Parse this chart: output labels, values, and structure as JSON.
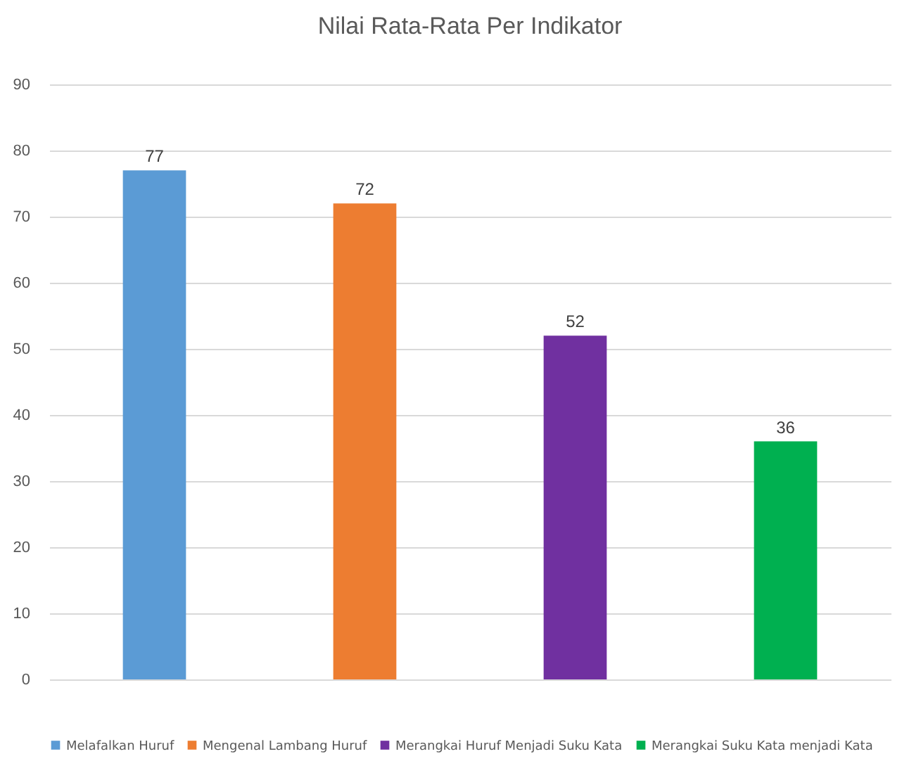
{
  "chart_data": {
    "type": "bar",
    "title": "Nilai Rata-Rata Per Indikator",
    "categories": [
      null,
      null,
      null,
      null
    ],
    "series": [
      {
        "name": "Melafalkan Huruf",
        "color": "#5b9bd5",
        "values": [
          77,
          null,
          null,
          null
        ]
      },
      {
        "name": "Mengenal Lambang Huruf",
        "color": "#ed7d31",
        "values": [
          null,
          72,
          null,
          null
        ]
      },
      {
        "name": "Merangkai Huruf Menjadi Suku Kata",
        "color": "#7030a0",
        "values": [
          null,
          null,
          52,
          null
        ]
      },
      {
        "name": "Merangkai Suku Kata menjadi Kata",
        "color": "#00b050",
        "values": [
          null,
          null,
          null,
          36
        ]
      }
    ],
    "ylim": [
      0,
      90
    ],
    "yticks": [
      0,
      10,
      20,
      30,
      40,
      50,
      60,
      70,
      80,
      90
    ],
    "grid": "y",
    "legend": "bottom",
    "data_labels": true
  }
}
